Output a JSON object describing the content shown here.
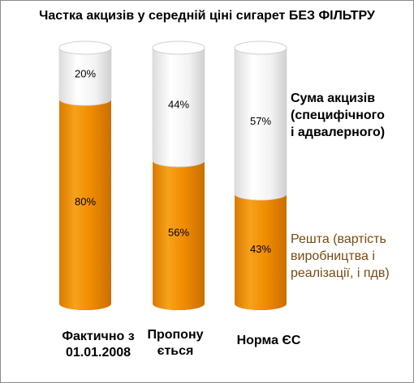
{
  "chart_data": {
    "type": "bar",
    "stacked": true,
    "percent": true,
    "title": "Частка акцизів у середній ціні сигарет БЕЗ ФІЛЬТРУ",
    "categories": [
      [
        "Фактично з",
        "01.01.2008"
      ],
      [
        "Пропону",
        "ється"
      ],
      [
        "Норма ЄС"
      ]
    ],
    "series": [
      {
        "name_lines": [
          "Решта (вартість",
          "виробництва і",
          "реалізації, і пдв)"
        ],
        "values": [
          80,
          56,
          43
        ],
        "labels": [
          "80%",
          "56%",
          "43%"
        ],
        "color": "#f08c00"
      },
      {
        "name_lines": [
          "Сума акцизів",
          "(специфічного",
          "і адвалерного)"
        ],
        "values": [
          20,
          44,
          57
        ],
        "labels": [
          "20%",
          "44%",
          "57%"
        ],
        "color": "#f4f4f4"
      }
    ],
    "ylim": [
      0,
      100
    ],
    "grid": false,
    "legend": "right"
  }
}
